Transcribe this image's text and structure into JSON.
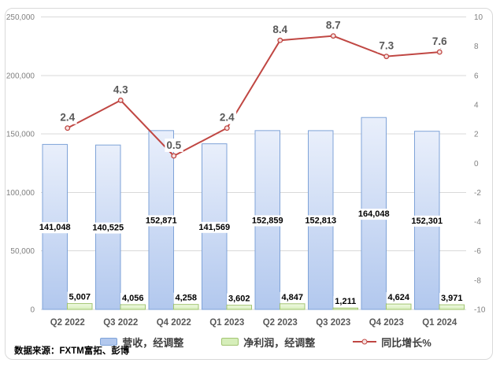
{
  "chart_data": {
    "type": "bar+line combo",
    "title": "",
    "categories": [
      "Q2 2022",
      "Q3 2022",
      "Q4 2022",
      "Q1 2023",
      "Q2 2023",
      "Q3 2023",
      "Q4 2023",
      "Q1 2024"
    ],
    "series": [
      {
        "name": "营收，经调整",
        "type": "bar",
        "axis": "left",
        "values": [
          141048,
          140525,
          152871,
          141569,
          152859,
          152813,
          164048,
          152301
        ],
        "labels": [
          "141,048",
          "140,525",
          "152,871",
          "141,569",
          "152,859",
          "152,813",
          "164,048",
          "152,301"
        ]
      },
      {
        "name": "净利润，经调整",
        "type": "bar",
        "axis": "left",
        "values": [
          5007,
          4056,
          4258,
          3602,
          4847,
          1211,
          4624,
          3971
        ],
        "labels": [
          "5,007",
          "4,056",
          "4,258",
          "3,602",
          "4,847",
          "1,211",
          "4,624",
          "3,971"
        ]
      },
      {
        "name": "同比增长%",
        "type": "line",
        "axis": "right",
        "values": [
          2.4,
          4.3,
          0.5,
          2.4,
          8.4,
          8.7,
          7.3,
          7.6
        ],
        "labels": [
          "2.4",
          "4.3",
          "0.5",
          "2.4",
          "8.4",
          "8.7",
          "7.3",
          "7.6"
        ]
      }
    ],
    "left_axis": {
      "min": 0,
      "max": 250000,
      "ticks": [
        "0",
        "50,000",
        "100,000",
        "150,000",
        "200,000",
        "250,000"
      ]
    },
    "right_axis": {
      "min": -10,
      "max": 10,
      "ticks": [
        "-10",
        "-8",
        "-6",
        "-4",
        "-2",
        "0",
        "2",
        "4",
        "6",
        "8",
        "10"
      ]
    },
    "grid": "horizontal",
    "legend_position": "bottom"
  },
  "colors": {
    "bar_revenue_fill_top": "#e9effb",
    "bar_revenue_fill_bottom": "#b2c8ee",
    "bar_revenue_border": "#7fa3d8",
    "bar_profit_fill_top": "#f1fae5",
    "bar_profit_fill_bottom": "#d6eeba",
    "bar_profit_border": "#a2c571",
    "line_yoy": "#c04743",
    "marker_fill": "#f6e4e3",
    "grid": "#d9d9d9",
    "axis_text": "#808080",
    "category_text": "#595959",
    "point_label_text": "#595959",
    "bar_label_text": "#000000",
    "leader_line": "#bfbfbf"
  },
  "legend": {
    "items": [
      {
        "label": "营收，经调整",
        "swatch": "bar-blue"
      },
      {
        "label": "净利润，经调整",
        "swatch": "bar-green"
      },
      {
        "label": "同比增长%",
        "swatch": "line-red"
      }
    ]
  },
  "source": {
    "label": "数据来源：FXTM富拓、彭博"
  }
}
